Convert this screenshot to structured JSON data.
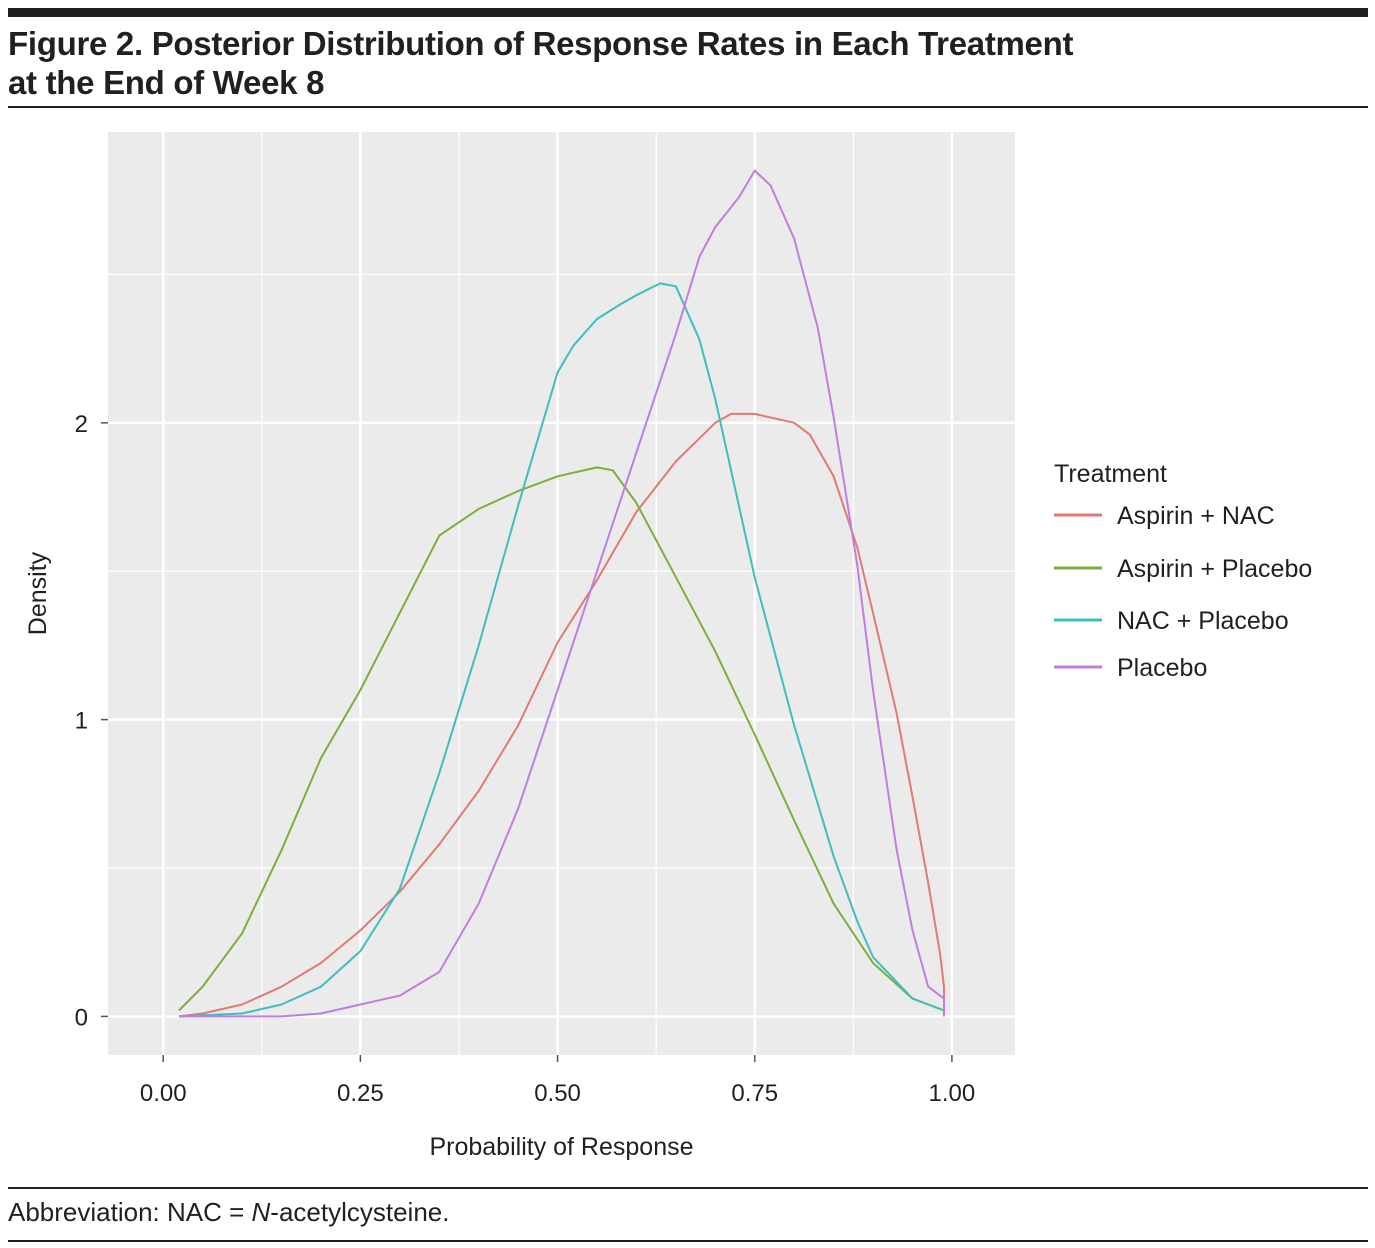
{
  "figure": {
    "title_line1": "Figure 2. Posterior Distribution of Response Rates in Each Treatment",
    "title_line2": "at the End of Week 8",
    "footnote_prefix": "Abbreviation: NAC = ",
    "footnote_italic": "N",
    "footnote_suffix": "-acetylcysteine."
  },
  "chart_data": {
    "type": "line",
    "title": "",
    "xlabel": "Probability of Response",
    "ylabel": "Density",
    "xlim": [
      -0.07,
      1.08
    ],
    "ylim": [
      -0.13,
      2.98
    ],
    "xticks": [
      0.0,
      0.25,
      0.5,
      0.75,
      1.0
    ],
    "xtick_labels": [
      "0.00",
      "0.25",
      "0.50",
      "0.75",
      "1.00"
    ],
    "yticks": [
      0,
      1,
      2
    ],
    "ytick_labels": [
      "0",
      "1",
      "2"
    ],
    "grid": true,
    "legend_title": "Treatment",
    "legend_position": "right",
    "colors": {
      "panel_bg": "#ebebeb",
      "grid": "#ffffff",
      "text": "#231f20"
    },
    "series": [
      {
        "name": "Aspirin + NAC",
        "color": "#e07b74",
        "x": [
          0.02,
          0.05,
          0.1,
          0.15,
          0.2,
          0.25,
          0.3,
          0.35,
          0.4,
          0.45,
          0.5,
          0.55,
          0.6,
          0.65,
          0.7,
          0.72,
          0.75,
          0.8,
          0.82,
          0.85,
          0.88,
          0.9,
          0.93,
          0.95,
          0.97,
          0.985,
          0.99,
          0.99
        ],
        "y": [
          0.0,
          0.01,
          0.04,
          0.1,
          0.18,
          0.29,
          0.42,
          0.58,
          0.76,
          0.98,
          1.26,
          1.47,
          1.7,
          1.87,
          2.0,
          2.03,
          2.03,
          2.0,
          1.96,
          1.82,
          1.58,
          1.36,
          1.02,
          0.74,
          0.45,
          0.21,
          0.1,
          0.0
        ]
      },
      {
        "name": "Aspirin + Placebo",
        "color": "#7cae3c",
        "x": [
          0.02,
          0.05,
          0.1,
          0.15,
          0.2,
          0.25,
          0.3,
          0.35,
          0.4,
          0.45,
          0.5,
          0.55,
          0.57,
          0.6,
          0.62,
          0.65,
          0.7,
          0.75,
          0.8,
          0.85,
          0.9,
          0.95,
          0.99,
          0.99
        ],
        "y": [
          0.02,
          0.1,
          0.28,
          0.56,
          0.87,
          1.1,
          1.36,
          1.62,
          1.71,
          1.77,
          1.82,
          1.85,
          1.84,
          1.73,
          1.63,
          1.48,
          1.23,
          0.95,
          0.66,
          0.38,
          0.18,
          0.06,
          0.02,
          0.0
        ]
      },
      {
        "name": "NAC + Placebo",
        "color": "#3fbdbf",
        "x": [
          0.02,
          0.1,
          0.15,
          0.2,
          0.25,
          0.3,
          0.35,
          0.4,
          0.45,
          0.5,
          0.52,
          0.55,
          0.58,
          0.6,
          0.63,
          0.65,
          0.68,
          0.7,
          0.75,
          0.8,
          0.85,
          0.88,
          0.9,
          0.95,
          0.99,
          0.99
        ],
        "y": [
          0.0,
          0.01,
          0.04,
          0.1,
          0.22,
          0.43,
          0.82,
          1.25,
          1.72,
          2.17,
          2.26,
          2.35,
          2.4,
          2.43,
          2.47,
          2.46,
          2.28,
          2.08,
          1.48,
          0.98,
          0.54,
          0.32,
          0.2,
          0.06,
          0.02,
          0.0
        ]
      },
      {
        "name": "Placebo",
        "color": "#c17de2",
        "x": [
          0.02,
          0.15,
          0.2,
          0.25,
          0.3,
          0.35,
          0.4,
          0.45,
          0.5,
          0.55,
          0.6,
          0.65,
          0.68,
          0.7,
          0.73,
          0.75,
          0.77,
          0.8,
          0.83,
          0.85,
          0.88,
          0.9,
          0.93,
          0.95,
          0.97,
          0.99,
          0.99
        ],
        "y": [
          0.0,
          0.0,
          0.01,
          0.04,
          0.07,
          0.15,
          0.38,
          0.7,
          1.1,
          1.5,
          1.9,
          2.3,
          2.56,
          2.66,
          2.76,
          2.85,
          2.8,
          2.62,
          2.32,
          2.02,
          1.52,
          1.1,
          0.56,
          0.29,
          0.1,
          0.06,
          0.0
        ]
      }
    ]
  }
}
